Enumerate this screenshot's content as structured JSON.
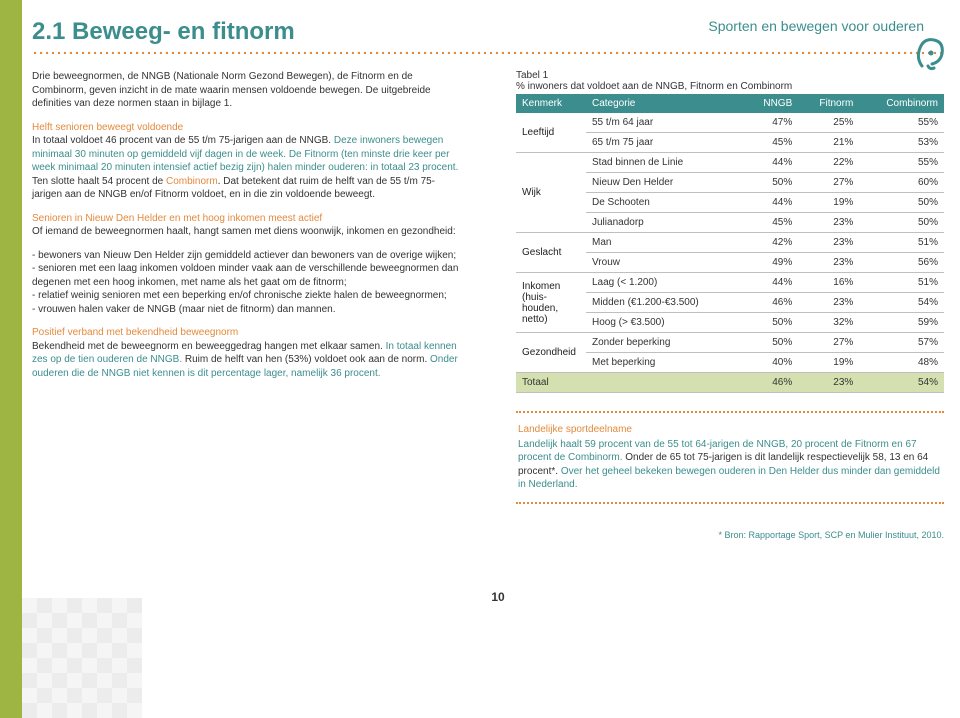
{
  "header": {
    "title": "2.1 Beweeg- en fitnorm",
    "tagline": "Sporten en bewegen voor ouderen"
  },
  "page_number": "10",
  "left": {
    "intro": "Drie beweegnormen, de NNGB (Nationale Norm Gezond Bewegen), de Fitnorm en de Combinorm, geven inzicht in de mate waarin mensen voldoende bewegen. De uitgebreide definities van deze normen staan in bijlage 1.",
    "sub1_head": "Helft senioren beweegt voldoende",
    "sub1_body_a": "In totaal voldoet 46 procent van de 55 t/m 75-jarigen aan de NNGB. ",
    "sub1_body_teal": "Deze inwoners bewegen minimaal 30 minuten op gemiddeld vijf dagen in de week. De Fitnorm (ten minste drie keer per week minimaal 20 minuten intensief actief bezig zijn) halen minder ouderen: in totaal 23 procent.",
    "sub1_body_b": " Ten slotte haalt 54 procent de ",
    "sub1_combinorm": "Combinorm",
    "sub1_body_c": ". Dat betekent dat ruim de helft van de 55 t/m 75-jarigen aan de NNGB en/of Fitnorm voldoet, en in die zin voldoende beweegt.",
    "sub2_head": "Senioren in Nieuw Den Helder en met hoog inkomen meest actief",
    "sub2_body": "Of iemand de beweegnormen haalt, hangt samen met diens woonwijk, inkomen en gezondheid:",
    "sub2_li1": "- bewoners van Nieuw Den Helder zijn gemiddeld actiever dan bewoners van de overige wijken;",
    "sub2_li2": "- senioren met een laag inkomen voldoen minder vaak aan de verschillende beweegnormen dan degenen met een hoog inkomen, met name als het gaat om de fitnorm;",
    "sub2_li3": "- relatief weinig senioren met een beperking en/of chronische ziekte halen de beweegnormen;",
    "sub2_li4": "- vrouwen halen vaker de NNGB (maar niet de fitnorm) dan mannen.",
    "sub3_head": "Positief verband met bekendheid beweegnorm",
    "sub3_body_a": "Bekendheid met de beweegnorm en beweeggedrag hangen met elkaar samen. ",
    "sub3_body_teal1": "In totaal kennen zes op de tien ouderen de NNGB.",
    "sub3_body_b": " Ruim de helft van hen (53%) voldoet ook aan de norm. ",
    "sub3_body_teal2": "Onder ouderen die de NNGB niet kennen is dit percentage lager, namelijk 36 procent."
  },
  "table": {
    "title": "Tabel 1",
    "subtitle": "% inwoners dat voldoet aan de NNGB, Fitnorm en Combinorm",
    "columns": [
      "Kenmerk",
      "Categorie",
      "NNGB",
      "Fitnorm",
      "Combinorm"
    ],
    "groups": [
      {
        "kenmerk": "Leeftijd",
        "rows": [
          {
            "cat": "55 t/m 64 jaar",
            "v": [
              "47%",
              "25%",
              "55%"
            ]
          },
          {
            "cat": "65 t/m 75 jaar",
            "v": [
              "45%",
              "21%",
              "53%"
            ]
          }
        ]
      },
      {
        "kenmerk": "Wijk",
        "rows": [
          {
            "cat": "Stad binnen de Linie",
            "v": [
              "44%",
              "22%",
              "55%"
            ]
          },
          {
            "cat": "Nieuw Den Helder",
            "v": [
              "50%",
              "27%",
              "60%"
            ]
          },
          {
            "cat": "De Schooten",
            "v": [
              "44%",
              "19%",
              "50%"
            ]
          },
          {
            "cat": "Julianadorp",
            "v": [
              "45%",
              "23%",
              "50%"
            ]
          }
        ]
      },
      {
        "kenmerk": "Geslacht",
        "rows": [
          {
            "cat": "Man",
            "v": [
              "42%",
              "23%",
              "51%"
            ]
          },
          {
            "cat": "Vrouw",
            "v": [
              "49%",
              "23%",
              "56%"
            ]
          }
        ]
      },
      {
        "kenmerk": "Inkomen (huis-houden, netto)",
        "rows": [
          {
            "cat": "Laag (< 1.200)",
            "v": [
              "44%",
              "16%",
              "51%"
            ]
          },
          {
            "cat": "Midden (€1.200-€3.500)",
            "v": [
              "46%",
              "23%",
              "54%"
            ]
          },
          {
            "cat": "Hoog (> €3.500)",
            "v": [
              "50%",
              "32%",
              "59%"
            ]
          }
        ]
      },
      {
        "kenmerk": "Gezondheid",
        "rows": [
          {
            "cat": "Zonder beperking",
            "v": [
              "50%",
              "27%",
              "57%"
            ]
          },
          {
            "cat": "Met beperking",
            "v": [
              "40%",
              "19%",
              "48%"
            ]
          }
        ]
      }
    ],
    "total": {
      "label": "Totaal",
      "v": [
        "46%",
        "23%",
        "54%"
      ]
    }
  },
  "footnote": {
    "head": "Landelijke sportdeelname",
    "body_a": "Landelijk haalt 59 procent van de 55 tot 64-jarigen de NNGB, 20 procent de Fitnorm en 67 procent de Combinorm. ",
    "body_black": "Onder de 65 tot 75-jarigen is dit landelijk respectievelijk 58, 13 en 64 procent*.",
    "body_b": " Over het geheel bekeken bewegen ouderen in Den Helder dus minder dan gemiddeld in Nederland."
  },
  "source": "* Bron: Rapportage Sport, SCP en Mulier Instituut, 2010.",
  "colors": {
    "teal": "#3b8e8d",
    "orange": "#e38a3d",
    "olive": "#9eb544",
    "total_row": "#d4e0b0"
  }
}
